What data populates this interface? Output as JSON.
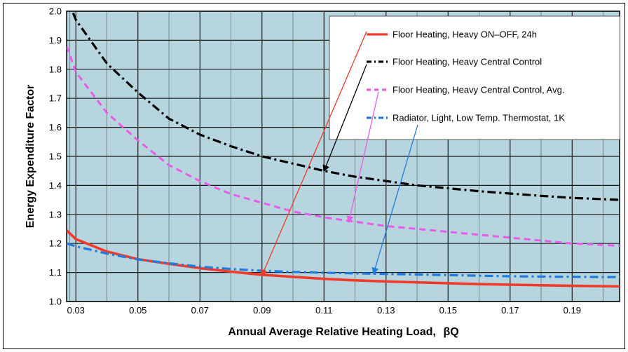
{
  "colors": {
    "plot_bg": "#b7d5de",
    "grid": "#1b1b1b",
    "red": "#f23a2a",
    "black": "#000000",
    "magenta": "#e85ce8",
    "blue": "#1e7be0"
  },
  "chart_data": {
    "type": "line",
    "title": "",
    "xlabel": "Annual Average Relative Heating Load,",
    "xlabel_symbol": "βQ",
    "ylabel": "Energy Expenditure Factor",
    "xlim": [
      0.027,
      0.2053
    ],
    "ylim": [
      1.0,
      2.0
    ],
    "x_ticks": [
      "0.03",
      "0.05",
      "0.07",
      "0.09",
      "0.11",
      "0.13",
      "0.15",
      "0.17",
      "0.19"
    ],
    "x_tick_values": [
      0.03,
      0.05,
      0.07,
      0.09,
      0.11,
      0.13,
      0.15,
      0.17,
      0.19
    ],
    "y_ticks": [
      "1.0",
      "1.1",
      "1.2",
      "1.3",
      "1.4",
      "1.5",
      "1.6",
      "1.7",
      "1.8",
      "1.9",
      "2.0"
    ],
    "y_tick_values": [
      1.0,
      1.1,
      1.2,
      1.3,
      1.4,
      1.5,
      1.6,
      1.7,
      1.8,
      1.9,
      2.0
    ],
    "grid": true,
    "legend_position": "top-right",
    "series": [
      {
        "name": "Floor Heating, Heavy ON–OFF, 24h",
        "color": "#f23a2a",
        "style": "solid",
        "x": [
          0.027,
          0.03,
          0.04,
          0.05,
          0.06,
          0.07,
          0.08,
          0.09,
          0.1,
          0.11,
          0.12,
          0.13,
          0.14,
          0.15,
          0.16,
          0.17,
          0.18,
          0.19,
          0.2053
        ],
        "y": [
          1.245,
          1.215,
          1.172,
          1.146,
          1.13,
          1.115,
          1.103,
          1.092,
          1.085,
          1.078,
          1.073,
          1.069,
          1.066,
          1.063,
          1.06,
          1.058,
          1.056,
          1.054,
          1.052
        ]
      },
      {
        "name": "Floor Heating, Heavy Central Control",
        "color": "#000000",
        "style": "dash-dot",
        "x": [
          0.027,
          0.03,
          0.04,
          0.05,
          0.06,
          0.07,
          0.08,
          0.09,
          0.1,
          0.11,
          0.12,
          0.13,
          0.14,
          0.15,
          0.16,
          0.17,
          0.18,
          0.19,
          0.2053
        ],
        "y": [
          2.05,
          1.97,
          1.82,
          1.72,
          1.63,
          1.575,
          1.535,
          1.5,
          1.475,
          1.45,
          1.43,
          1.415,
          1.4,
          1.39,
          1.38,
          1.372,
          1.364,
          1.357,
          1.35
        ]
      },
      {
        "name": "Floor Heating, Heavy Central Control, Avg.",
        "color": "#e85ce8",
        "style": "dashed",
        "x": [
          0.027,
          0.03,
          0.04,
          0.05,
          0.06,
          0.07,
          0.08,
          0.09,
          0.1,
          0.11,
          0.12,
          0.13,
          0.14,
          0.15,
          0.16,
          0.17,
          0.18,
          0.19,
          0.2053
        ],
        "y": [
          1.88,
          1.79,
          1.65,
          1.555,
          1.47,
          1.415,
          1.37,
          1.34,
          1.31,
          1.29,
          1.275,
          1.26,
          1.25,
          1.24,
          1.23,
          1.22,
          1.21,
          1.2,
          1.192
        ]
      },
      {
        "name": "Radiator, Light, Low Temp. Thermostat, 1K",
        "color": "#1e7be0",
        "style": "dash-dot",
        "x": [
          0.027,
          0.03,
          0.04,
          0.05,
          0.06,
          0.07,
          0.08,
          0.09,
          0.1,
          0.11,
          0.12,
          0.13,
          0.14,
          0.15,
          0.16,
          0.17,
          0.18,
          0.19,
          0.2053
        ],
        "y": [
          1.2,
          1.19,
          1.165,
          1.145,
          1.132,
          1.12,
          1.112,
          1.106,
          1.102,
          1.099,
          1.097,
          1.095,
          1.093,
          1.091,
          1.089,
          1.087,
          1.086,
          1.085,
          1.084
        ]
      }
    ],
    "annotations": [
      {
        "series": 0,
        "from_legend": true,
        "to": [
          0.09,
          1.09
        ]
      },
      {
        "series": 1,
        "from_legend": true,
        "to": [
          0.11,
          1.45
        ]
      },
      {
        "series": 2,
        "from_legend": true,
        "to": [
          0.118,
          1.275
        ]
      },
      {
        "series": 3,
        "from_legend": true,
        "to": [
          0.126,
          1.097
        ]
      }
    ]
  }
}
